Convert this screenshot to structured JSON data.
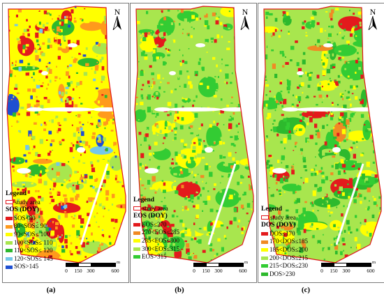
{
  "north_label": "N",
  "scale": {
    "ticks": [
      "0",
      "150",
      "300",
      "600"
    ],
    "unit": "m"
  },
  "panels": [
    {
      "id": "a",
      "caption": "(a)",
      "legend_title": "Legend",
      "study_area": "study area",
      "subtitle": "SOS (DOY)",
      "classes": [
        {
          "label": "SOS<80",
          "color": "#e31a1c"
        },
        {
          "label": "80<SOS≤ 90",
          "color": "#ff9a1c"
        },
        {
          "label": "90<SOS≤ 100",
          "color": "#ffff00"
        },
        {
          "label": "100<SOS≤ 110",
          "color": "#a8e64e"
        },
        {
          "label": "110<SOS≤ 120",
          "color": "#2db92d"
        },
        {
          "label": "120<SOS≤ 145",
          "color": "#74c7e8"
        },
        {
          "label": "SOS>145",
          "color": "#1f4fd1"
        }
      ]
    },
    {
      "id": "b",
      "caption": "(b)",
      "legend_title": "Legend",
      "study_area": "study area",
      "subtitle": "EOS (DOY)",
      "classes": [
        {
          "label": "EOS≤270",
          "color": "#e31a1c"
        },
        {
          "label": "270<EOS≤285",
          "color": "#f08a24"
        },
        {
          "label": "285<EOS≤300",
          "color": "#ffff00"
        },
        {
          "label": "300<EOS≤315",
          "color": "#a8e64e"
        },
        {
          "label": "EOS>315",
          "color": "#33cc33"
        }
      ]
    },
    {
      "id": "c",
      "caption": "(c)",
      "legend_title": "Legend",
      "study_area": "study area",
      "subtitle": "DOS (DOY)",
      "classes": [
        {
          "label": "DOS≤170",
          "color": "#e31a1c"
        },
        {
          "label": "170<DOS≤185",
          "color": "#f08a24"
        },
        {
          "label": "185<DOS≤200",
          "color": "#ffff00"
        },
        {
          "label": "200<DOS≤215",
          "color": "#a8e64e"
        },
        {
          "label": "215<DOS≤230",
          "color": "#33cc33"
        },
        {
          "label": "DOS>230",
          "color": "#2db92d"
        }
      ]
    }
  ]
}
